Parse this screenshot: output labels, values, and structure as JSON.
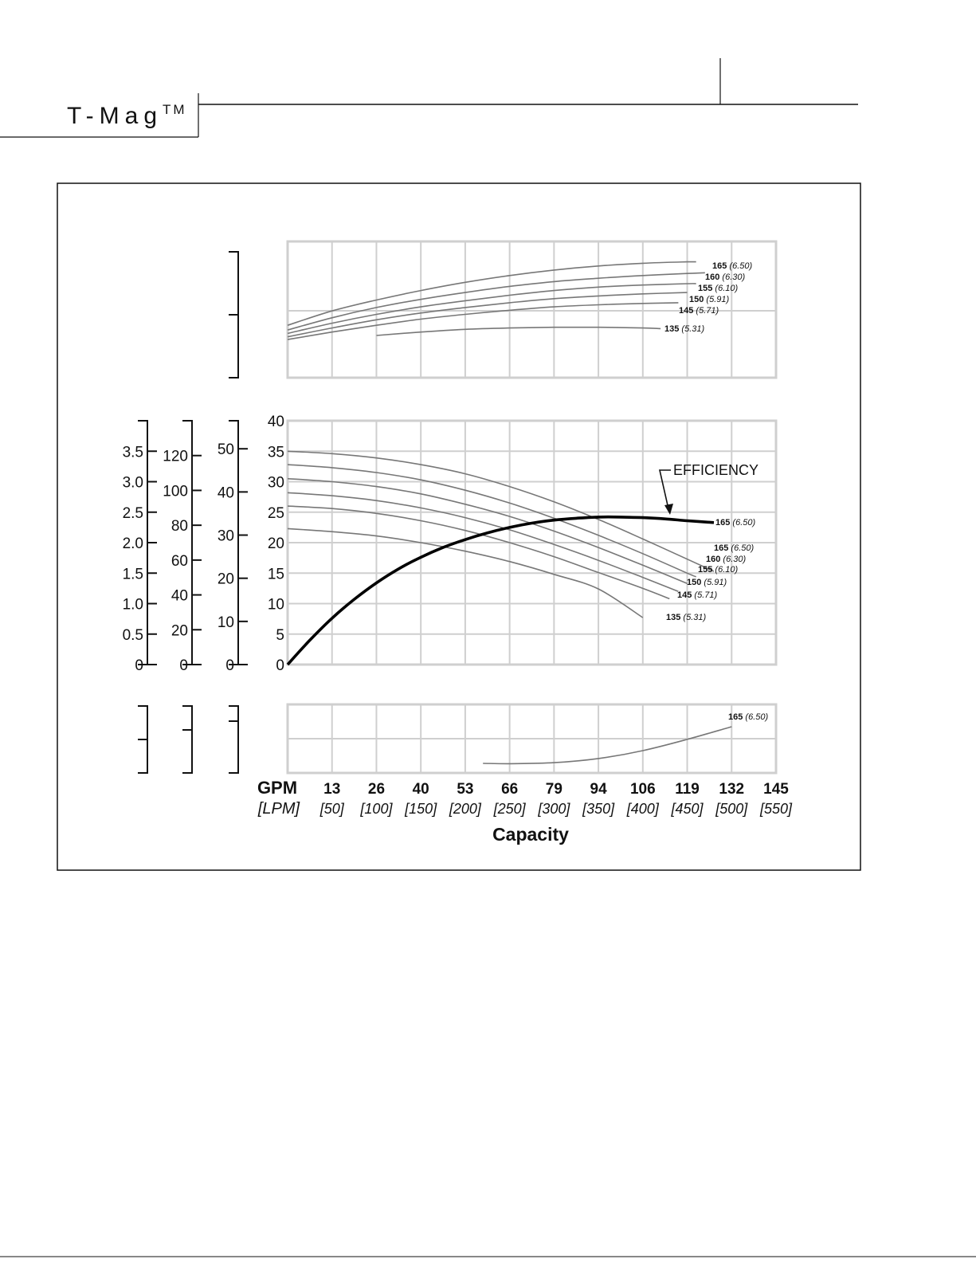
{
  "header": {
    "brand": "T-Mag",
    "brand_mark": "TM"
  },
  "chart_data": {
    "type": "line",
    "title": "",
    "xlabel": "Capacity",
    "x_unit_primary": "GPM",
    "x_unit_secondary": "[LPM]",
    "x_ticks": [
      "13",
      "26",
      "40",
      "53",
      "66",
      "79",
      "94",
      "106",
      "119",
      "132",
      "145"
    ],
    "x_ticks_secondary": [
      "[50]",
      "[100]",
      "[150]",
      "[200]",
      "[250]",
      "[300]",
      "[350]",
      "[400]",
      "[450]",
      "[500]",
      "[550]"
    ],
    "xlim": [
      0,
      550
    ],
    "efficiency_label": "EFFICIENCY",
    "panels": [
      {
        "name": "power",
        "ylim": [
          0,
          2
        ],
        "y_axes": [
          {
            "ticks": []
          }
        ],
        "series": [
          {
            "name": "165",
            "sub": "(6.50)",
            "x": [
              0,
              50,
              100,
              150,
              200,
              250,
              300,
              350,
              400,
              450,
              460
            ],
            "y": [
              0.77,
              0.98,
              1.14,
              1.28,
              1.4,
              1.5,
              1.58,
              1.64,
              1.68,
              1.7,
              1.7
            ]
          },
          {
            "name": "160",
            "sub": "(6.30)",
            "x": [
              0,
              50,
              100,
              150,
              200,
              250,
              300,
              350,
              400,
              450,
              470
            ],
            "y": [
              0.7,
              0.88,
              1.03,
              1.15,
              1.25,
              1.34,
              1.41,
              1.46,
              1.5,
              1.53,
              1.54
            ]
          },
          {
            "name": "155",
            "sub": "(6.10)",
            "x": [
              0,
              50,
              100,
              150,
              200,
              250,
              300,
              350,
              400,
              450,
              460
            ],
            "y": [
              0.65,
              0.8,
              0.93,
              1.04,
              1.13,
              1.21,
              1.28,
              1.33,
              1.36,
              1.38,
              1.38
            ]
          },
          {
            "name": "150",
            "sub": "(5.91)",
            "x": [
              0,
              50,
              100,
              150,
              200,
              250,
              300,
              350,
              400,
              450
            ],
            "y": [
              0.6,
              0.73,
              0.85,
              0.95,
              1.03,
              1.1,
              1.16,
              1.2,
              1.23,
              1.25
            ]
          },
          {
            "name": "145",
            "sub": "(5.71)",
            "x": [
              0,
              50,
              100,
              150,
              200,
              250,
              300,
              350,
              400,
              440
            ],
            "y": [
              0.56,
              0.67,
              0.77,
              0.86,
              0.93,
              0.99,
              1.04,
              1.07,
              1.09,
              1.1
            ]
          },
          {
            "name": "135",
            "sub": "(5.31)",
            "x": [
              100,
              150,
              200,
              250,
              300,
              350,
              400,
              420
            ],
            "y": [
              0.62,
              0.67,
              0.71,
              0.73,
              0.74,
              0.74,
              0.73,
              0.72
            ]
          }
        ]
      },
      {
        "name": "head",
        "ylim": [
          0,
          40
        ],
        "y_axes": [
          {
            "ticks": [
              "0",
              "0.5",
              "1.0",
              "1.5",
              "2.0",
              "2.5",
              "3.0",
              "3.5"
            ],
            "values": [
              0,
              0.5,
              1.0,
              1.5,
              2.0,
              2.5,
              3.0,
              3.5
            ],
            "max": 4.0
          },
          {
            "ticks": [
              "0",
              "20",
              "40",
              "60",
              "80",
              "100",
              "120"
            ],
            "values": [
              0,
              20,
              40,
              60,
              80,
              100,
              120
            ],
            "max": 140
          },
          {
            "ticks": [
              "0",
              "10",
              "20",
              "30",
              "40",
              "50"
            ],
            "values": [
              0,
              10,
              20,
              30,
              40,
              50
            ],
            "max": 56.5
          },
          {
            "ticks": [
              "0",
              "5",
              "10",
              "15",
              "20",
              "25",
              "30",
              "35",
              "40"
            ],
            "values": [
              0,
              5,
              10,
              15,
              20,
              25,
              30,
              35,
              40
            ],
            "max": 40
          }
        ],
        "series": [
          {
            "name": "165",
            "sub": "(6.50)",
            "x": [
              0,
              50,
              100,
              150,
              200,
              250,
              300,
              350,
              400,
              450,
              480
            ],
            "y": [
              35.0,
              34.6,
              33.9,
              32.8,
              31.3,
              29.2,
              26.7,
              23.8,
              20.6,
              17.3,
              15.3
            ]
          },
          {
            "name": "160",
            "sub": "(6.30)",
            "x": [
              0,
              50,
              100,
              150,
              200,
              250,
              300,
              350,
              400,
              450,
              460
            ],
            "y": [
              32.8,
              32.3,
              31.5,
              30.3,
              28.6,
              26.5,
              24.0,
              21.2,
              18.2,
              15.0,
              14.4
            ]
          },
          {
            "name": "155",
            "sub": "(6.10)",
            "x": [
              0,
              50,
              100,
              150,
              200,
              250,
              300,
              350,
              400,
              450
            ],
            "y": [
              30.5,
              30.0,
              29.2,
              28.0,
              26.3,
              24.3,
              21.9,
              19.2,
              16.3,
              13.3
            ]
          },
          {
            "name": "150",
            "sub": "(5.91)",
            "x": [
              0,
              50,
              100,
              150,
              200,
              250,
              300,
              350,
              400,
              440
            ],
            "y": [
              28.2,
              27.7,
              26.9,
              25.7,
              24.1,
              22.1,
              19.7,
              17.1,
              14.3,
              12.0
            ]
          },
          {
            "name": "145",
            "sub": "(5.71)",
            "x": [
              0,
              50,
              100,
              150,
              200,
              250,
              300,
              350,
              400,
              430
            ],
            "y": [
              26.0,
              25.6,
              24.8,
              23.6,
              22.0,
              20.0,
              17.7,
              15.1,
              12.5,
              10.8
            ]
          },
          {
            "name": "135",
            "sub": "(5.31)",
            "x": [
              0,
              50,
              100,
              150,
              200,
              250,
              300,
              350,
              400
            ],
            "y": [
              22.3,
              21.8,
              21.1,
              20.0,
              18.6,
              16.9,
              14.8,
              12.4,
              7.7
            ]
          }
        ],
        "efficiency": {
          "name": "165",
          "sub": "(6.50)",
          "x": [
            0,
            25,
            50,
            75,
            100,
            125,
            150,
            175,
            200,
            225,
            250,
            275,
            300,
            325,
            350,
            375,
            400,
            425,
            450,
            480
          ],
          "y": [
            0,
            4.0,
            7.6,
            10.7,
            13.4,
            15.7,
            17.6,
            19.2,
            20.5,
            21.6,
            22.5,
            23.2,
            23.7,
            24.0,
            24.2,
            24.2,
            24.1,
            23.9,
            23.6,
            23.3
          ]
        }
      },
      {
        "name": "npshr",
        "ylim": [
          0,
          2
        ],
        "y_axes": [
          {
            "ticks": []
          },
          {
            "ticks": []
          },
          {
            "ticks": []
          }
        ],
        "series": [
          {
            "name": "165",
            "sub": "(6.50)",
            "x": [
              220,
              250,
              300,
              350,
              400,
              450,
              500
            ],
            "y": [
              0.28,
              0.27,
              0.3,
              0.42,
              0.65,
              0.98,
              1.35
            ]
          }
        ]
      }
    ]
  }
}
